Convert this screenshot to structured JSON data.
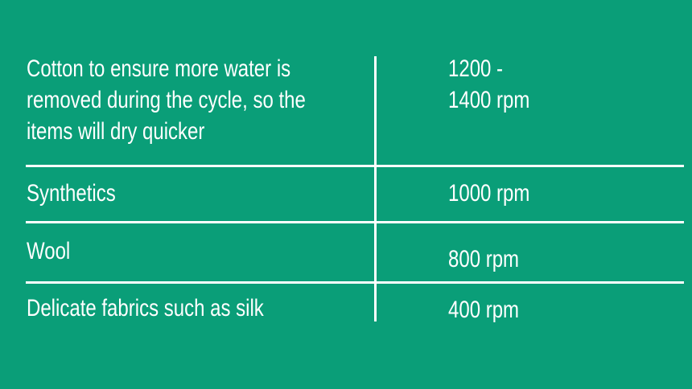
{
  "background_color": "#0a9e78",
  "rows": [
    {
      "fabric": [
        "Cotton to ensure more water is",
        "removed during the cycle, so the",
        "items will dry quicker"
      ],
      "speed": [
        "1200 -",
        "1400 rpm"
      ]
    },
    {
      "fabric": [
        "Synthetics"
      ],
      "speed": [
        "1000 rpm"
      ]
    },
    {
      "fabric": [
        "Wool"
      ],
      "speed": [
        "800 rpm"
      ]
    },
    {
      "fabric": [
        "Delicate fabrics such as silk"
      ],
      "speed": [
        "400 rpm"
      ]
    }
  ]
}
